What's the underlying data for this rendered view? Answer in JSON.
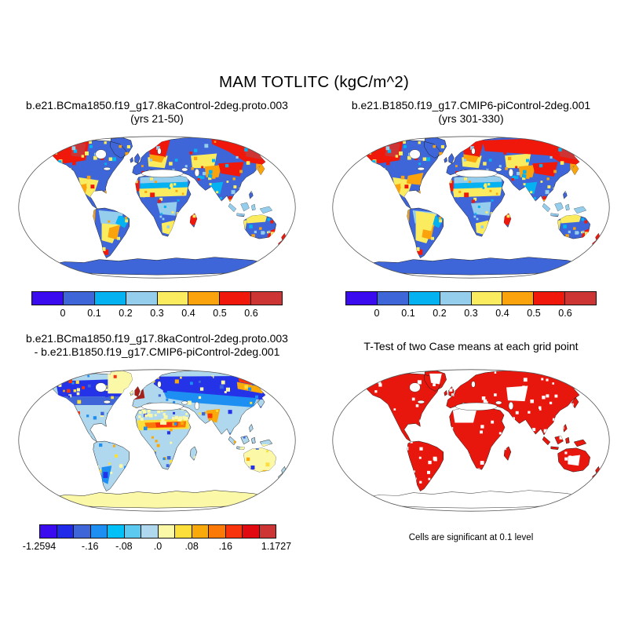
{
  "figure": {
    "title": "MAM TOTLITC (kgC/m^2)"
  },
  "panels": {
    "case1": {
      "title_line1": "b.e21.BCma1850.f19_g17.8kaControl-2deg.proto.003",
      "title_line2": "(yrs 21-50)",
      "colorbar": {
        "colors": [
          "#3b0bef",
          "#3e66d8",
          "#04b2f2",
          "#95cdec",
          "#fbec5f",
          "#faa30c",
          "#f0170b",
          "#cd3434"
        ],
        "tick_labels": [
          "0",
          "0.1",
          "0.2",
          "0.3",
          "0.4",
          "0.5",
          "0.6"
        ],
        "tick_indices": [
          1,
          2,
          3,
          4,
          5,
          6,
          7
        ]
      }
    },
    "case2": {
      "title_line1": "b.e21.B1850.f19_g17.CMIP6-piControl-2deg.001",
      "title_line2": "(yrs 301-330)",
      "colorbar": {
        "colors": [
          "#3b0bef",
          "#3e66d8",
          "#04b2f2",
          "#95cdec",
          "#fbec5f",
          "#faa30c",
          "#f0170b",
          "#cd3434"
        ],
        "tick_labels": [
          "0",
          "0.1",
          "0.2",
          "0.3",
          "0.4",
          "0.5",
          "0.6"
        ],
        "tick_indices": [
          1,
          2,
          3,
          4,
          5,
          6,
          7
        ]
      }
    },
    "difference": {
      "title_line1": "b.e21.BCma1850.f19_g17.8kaControl-2deg.proto.003",
      "title_line2": "- b.e21.B1850.f19_g17.CMIP6-piControl-2deg.001",
      "colorbar": {
        "colors": [
          "#3b0bef",
          "#1f2be8",
          "#3e66d8",
          "#1e8ff2",
          "#00c0f8",
          "#5cc9f0",
          "#afd8ee",
          "#fbf8a8",
          "#fcdf3a",
          "#f9a909",
          "#fb7a07",
          "#f8340c",
          "#e00a10",
          "#cd3434"
        ],
        "tick_labels": [
          "-1.2594",
          "-.16",
          "-.08",
          ".0",
          ".08",
          ".16",
          "1.1727"
        ],
        "tick_indices": [
          0,
          3,
          5,
          7,
          9,
          11,
          14
        ]
      }
    },
    "ttest": {
      "title": "T-Test of two Case means at each grid point",
      "caption": "Cells are significant at 0.1 level"
    }
  },
  "map_colors": {
    "values_land_base": "#3e66d8",
    "difference_land_base": "#afd8ee",
    "difference_antarctica": "#fbf8a8",
    "ttest_significant": "#e8170d",
    "ocean": "#ffffff",
    "coastline": "#1a1a1a",
    "map_outline": "#555555"
  },
  "chart_data": [
    {
      "type": "heatmap",
      "variable": "TOTLITC (total litter carbon)",
      "season": "MAM",
      "units": "kgC/m^2",
      "title": "b.e21.BCma1850.f19_g17.8kaControl-2deg.proto.003",
      "subtitle": "(yrs 21-50)",
      "projection": "Robinson global map, oceans unshaded",
      "levels": [
        0,
        0.1,
        0.2,
        0.3,
        0.4,
        0.5,
        0.6
      ],
      "colors": [
        "#3b0bef",
        "#3e66d8",
        "#04b2f2",
        "#95cdec",
        "#fbec5f",
        "#faa30c",
        "#f0170b",
        "#cd3434"
      ],
      "legend_position": "bottom",
      "high_value_regions": [
        "Alaska and northwest Canada (>0.6)",
        "Scandinavia (>0.6)",
        "central and eastern Siberia (>0.6)",
        "New Zealand",
        "southeast Australia coast",
        "Madagascar east coast"
      ],
      "mid_value_regions": [
        "Amazon and Congo basins (0.2-0.3)",
        "Sahel band (0.2-0.4)",
        "southern Brazil and Andes fringe (0.3-0.6)",
        "Tibet/Mongolia margin (0.4-0.6)",
        "Mexico and southwest US (0.3-0.5)"
      ],
      "low_value_regions": [
        "most remaining land 0-0.1",
        "Antarctica 0-0.1",
        "oceans not shaded"
      ]
    },
    {
      "type": "heatmap",
      "variable": "TOTLITC (total litter carbon)",
      "season": "MAM",
      "units": "kgC/m^2",
      "title": "b.e21.B1850.f19_g17.CMIP6-piControl-2deg.001",
      "subtitle": "(yrs 301-330)",
      "projection": "Robinson global map, oceans unshaded",
      "levels": [
        0,
        0.1,
        0.2,
        0.3,
        0.4,
        0.5,
        0.6
      ],
      "colors": [
        "#3b0bef",
        "#3e66d8",
        "#04b2f2",
        "#95cdec",
        "#fbec5f",
        "#faa30c",
        "#f0170b",
        "#cd3434"
      ],
      "legend_position": "bottom",
      "high_value_regions": [
        "Alaska and northwest Canada (>0.6)",
        "band from Scandinavia across northern Eurasia to eastern Siberia (>0.6)",
        "New Zealand",
        "southeast Australia coast"
      ],
      "mid_value_regions": [
        "larger yellow/orange areas in South America than case 1",
        "Sahel band",
        "Mexico and southeast US",
        "Tibet/Mongolia margin"
      ],
      "low_value_regions": [
        "most remaining land 0-0.1",
        "Antarctica 0-0.1",
        "oceans not shaded"
      ]
    },
    {
      "type": "heatmap",
      "variable": "TOTLITC difference (case1 - case2)",
      "units": "kgC/m^2",
      "title": "b.e21.BCma1850.f19_g17.8kaControl-2deg.proto.003 - b.e21.B1850.f19_g17.CMIP6-piControl-2deg.001",
      "projection": "Robinson global map, oceans unshaded",
      "data_min": -1.2594,
      "data_max": 1.1727,
      "labeled_levels": [
        -1.2594,
        -0.16,
        -0.08,
        0.0,
        0.08,
        0.16,
        1.1727
      ],
      "inferred_levels": [
        -1.2594,
        -0.24,
        -0.2,
        -0.16,
        -0.12,
        -0.08,
        -0.04,
        0.0,
        0.04,
        0.08,
        0.12,
        0.16,
        0.2,
        0.24,
        1.1727
      ],
      "colors": [
        "#3b0bef",
        "#1f2be8",
        "#3e66d8",
        "#1e8ff2",
        "#00c0f8",
        "#5cc9f0",
        "#afd8ee",
        "#fbf8a8",
        "#fcdf3a",
        "#f9a909",
        "#fb7a07",
        "#f8340c",
        "#e00a10",
        "#cd3434"
      ],
      "legend_position": "bottom",
      "negative_regions": [
        "strong negative band across boreal Canada",
        "strong negative band across northern Eurasia",
        "southern South America patches",
        "most land weakly negative (light blue)"
      ],
      "positive_regions": [
        "northeast Siberia (strong positive)",
        "British Isles (dark red, near maximum)",
        "Sahel band (orange/red)",
        "Sahara, Arabia, Greenland, Australia, Antarctica weakly positive (pale yellow)",
        "India/Pakistan orange patches"
      ]
    },
    {
      "type": "significance map",
      "title": "T-Test of two Case means at each grid point",
      "caption": "Cells are significant at 0.1 level",
      "projection": "Robinson global map, oceans unshaded",
      "significant_color": "#e8170d",
      "description": "Nearly all land grid cells are significant (red) with scattered non-significant white cells; larger white gaps over western Sahara, central Asia, interior Australia and northern Greenland; Antarctica unshaded (outline only)"
    }
  ]
}
